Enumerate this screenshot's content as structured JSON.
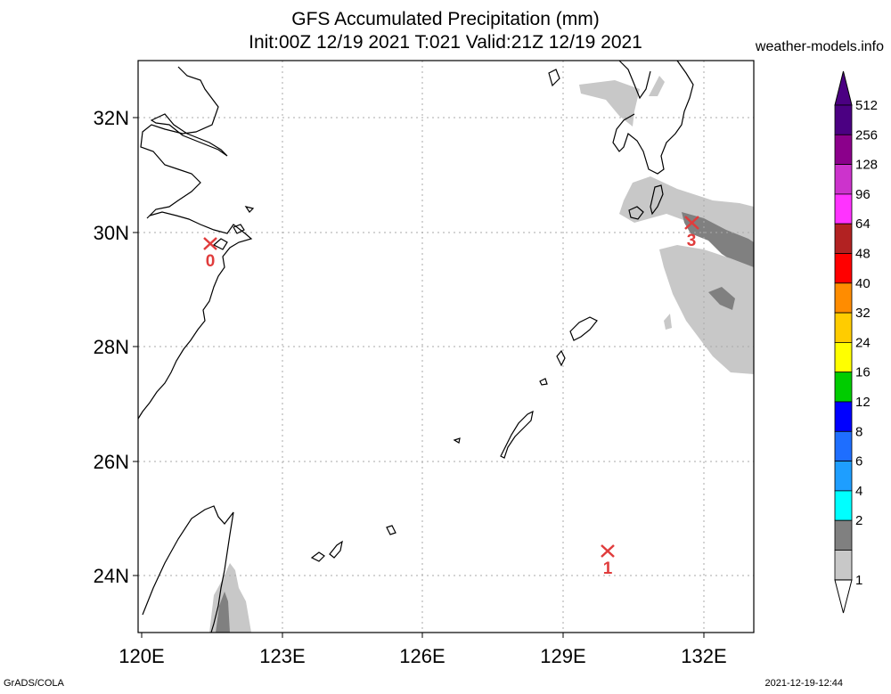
{
  "title_line1": "GFS Accumulated Precipitation (mm)",
  "title_line2": "Init:00Z 12/19 2021 T:021 Valid:21Z 12/19 2021",
  "site": "weather-models.info",
  "footer_left": "GrADS/COLA",
  "footer_right": "2021-12-19-12:44",
  "lat_labels": [
    "32N",
    "30N",
    "28N",
    "26N",
    "24N"
  ],
  "lon_labels": [
    "120E",
    "123E",
    "126E",
    "129E",
    "132E"
  ],
  "colorbar": {
    "levels": [
      "512",
      "256",
      "128",
      "96",
      "64",
      "48",
      "40",
      "32",
      "24",
      "16",
      "12",
      "8",
      "6",
      "4",
      "2",
      "1"
    ],
    "colors": [
      "#4b0082",
      "#8b008b",
      "#cc33cc",
      "#ff33ff",
      "#b22222",
      "#ff0000",
      "#ff8c00",
      "#ffcc00",
      "#ffff00",
      "#00cc00",
      "#0000ff",
      "#1e6eff",
      "#1e9eff",
      "#00ffff",
      "#808080",
      "#c8c8c8"
    ]
  },
  "markers": [
    {
      "label": "0"
    },
    {
      "label": "3"
    },
    {
      "label": "1"
    }
  ]
}
